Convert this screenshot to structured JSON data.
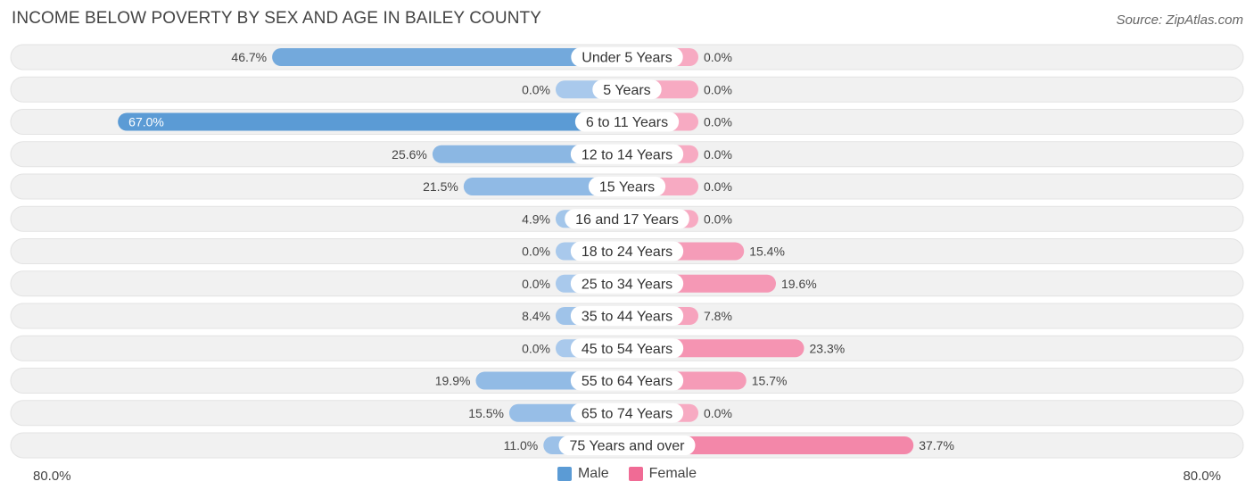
{
  "title": "INCOME BELOW POVERTY BY SEX AND AGE IN BAILEY COUNTY",
  "source": "Source: ZipAtlas.com",
  "colors": {
    "male": "#5b9bd5",
    "male_light": "#a9c9ec",
    "female": "#f06b95",
    "female_light": "#f7aac2",
    "row_bg": "#f1f1f1"
  },
  "chart_data": {
    "type": "bar",
    "orientation": "horizontal-diverging",
    "categories": [
      "Under 5 Years",
      "5 Years",
      "6 to 11 Years",
      "12 to 14 Years",
      "15 Years",
      "16 and 17 Years",
      "18 to 24 Years",
      "25 to 34 Years",
      "35 to 44 Years",
      "45 to 54 Years",
      "55 to 64 Years",
      "65 to 74 Years",
      "75 Years and over"
    ],
    "series": [
      {
        "name": "Male",
        "values": [
          46.7,
          0.0,
          67.0,
          25.6,
          21.5,
          4.9,
          0.0,
          0.0,
          8.4,
          0.0,
          19.9,
          15.5,
          11.0
        ],
        "labels": [
          "46.7%",
          "0.0%",
          "67.0%",
          "25.6%",
          "21.5%",
          "4.9%",
          "0.0%",
          "0.0%",
          "8.4%",
          "0.0%",
          "19.9%",
          "15.5%",
          "11.0%"
        ]
      },
      {
        "name": "Female",
        "values": [
          0.0,
          0.0,
          0.0,
          0.0,
          0.0,
          0.0,
          15.4,
          19.6,
          7.8,
          23.3,
          15.7,
          0.0,
          37.7
        ],
        "labels": [
          "0.0%",
          "0.0%",
          "0.0%",
          "0.0%",
          "0.0%",
          "0.0%",
          "15.4%",
          "19.6%",
          "7.8%",
          "23.3%",
          "15.7%",
          "0.0%",
          "37.7%"
        ]
      }
    ],
    "xlim": [
      -80,
      80
    ],
    "axis_labels": {
      "left": "80.0%",
      "right": "80.0%"
    },
    "legend_position": "bottom-center"
  }
}
